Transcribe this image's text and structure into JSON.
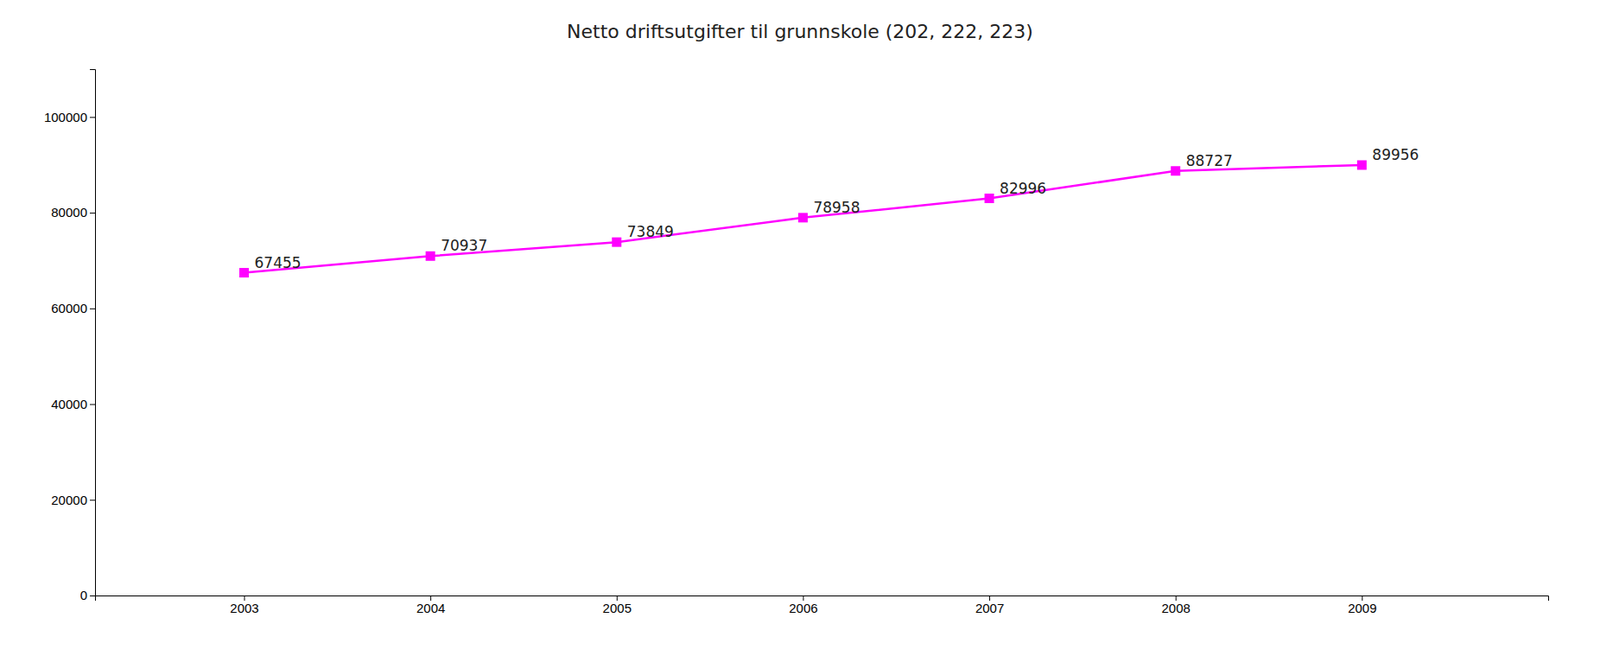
{
  "chart_data": {
    "type": "line",
    "title": "Netto driftsutgifter til grunnskole (202, 222, 223)",
    "x": [
      2003,
      2004,
      2005,
      2006,
      2007,
      2008,
      2009
    ],
    "values": [
      67455,
      70937,
      73849,
      78958,
      82996,
      88727,
      89956
    ],
    "color": "#FF00FF",
    "marker": "square",
    "data_labels": true,
    "grid": false,
    "xlim": [
      2002.2,
      2010.0
    ],
    "xticks": [
      2003,
      2004,
      2005,
      2006,
      2007,
      2008,
      2009
    ],
    "ylim": [
      0,
      110000
    ],
    "yticks": [
      0,
      20000,
      40000,
      60000,
      80000,
      100000
    ]
  }
}
